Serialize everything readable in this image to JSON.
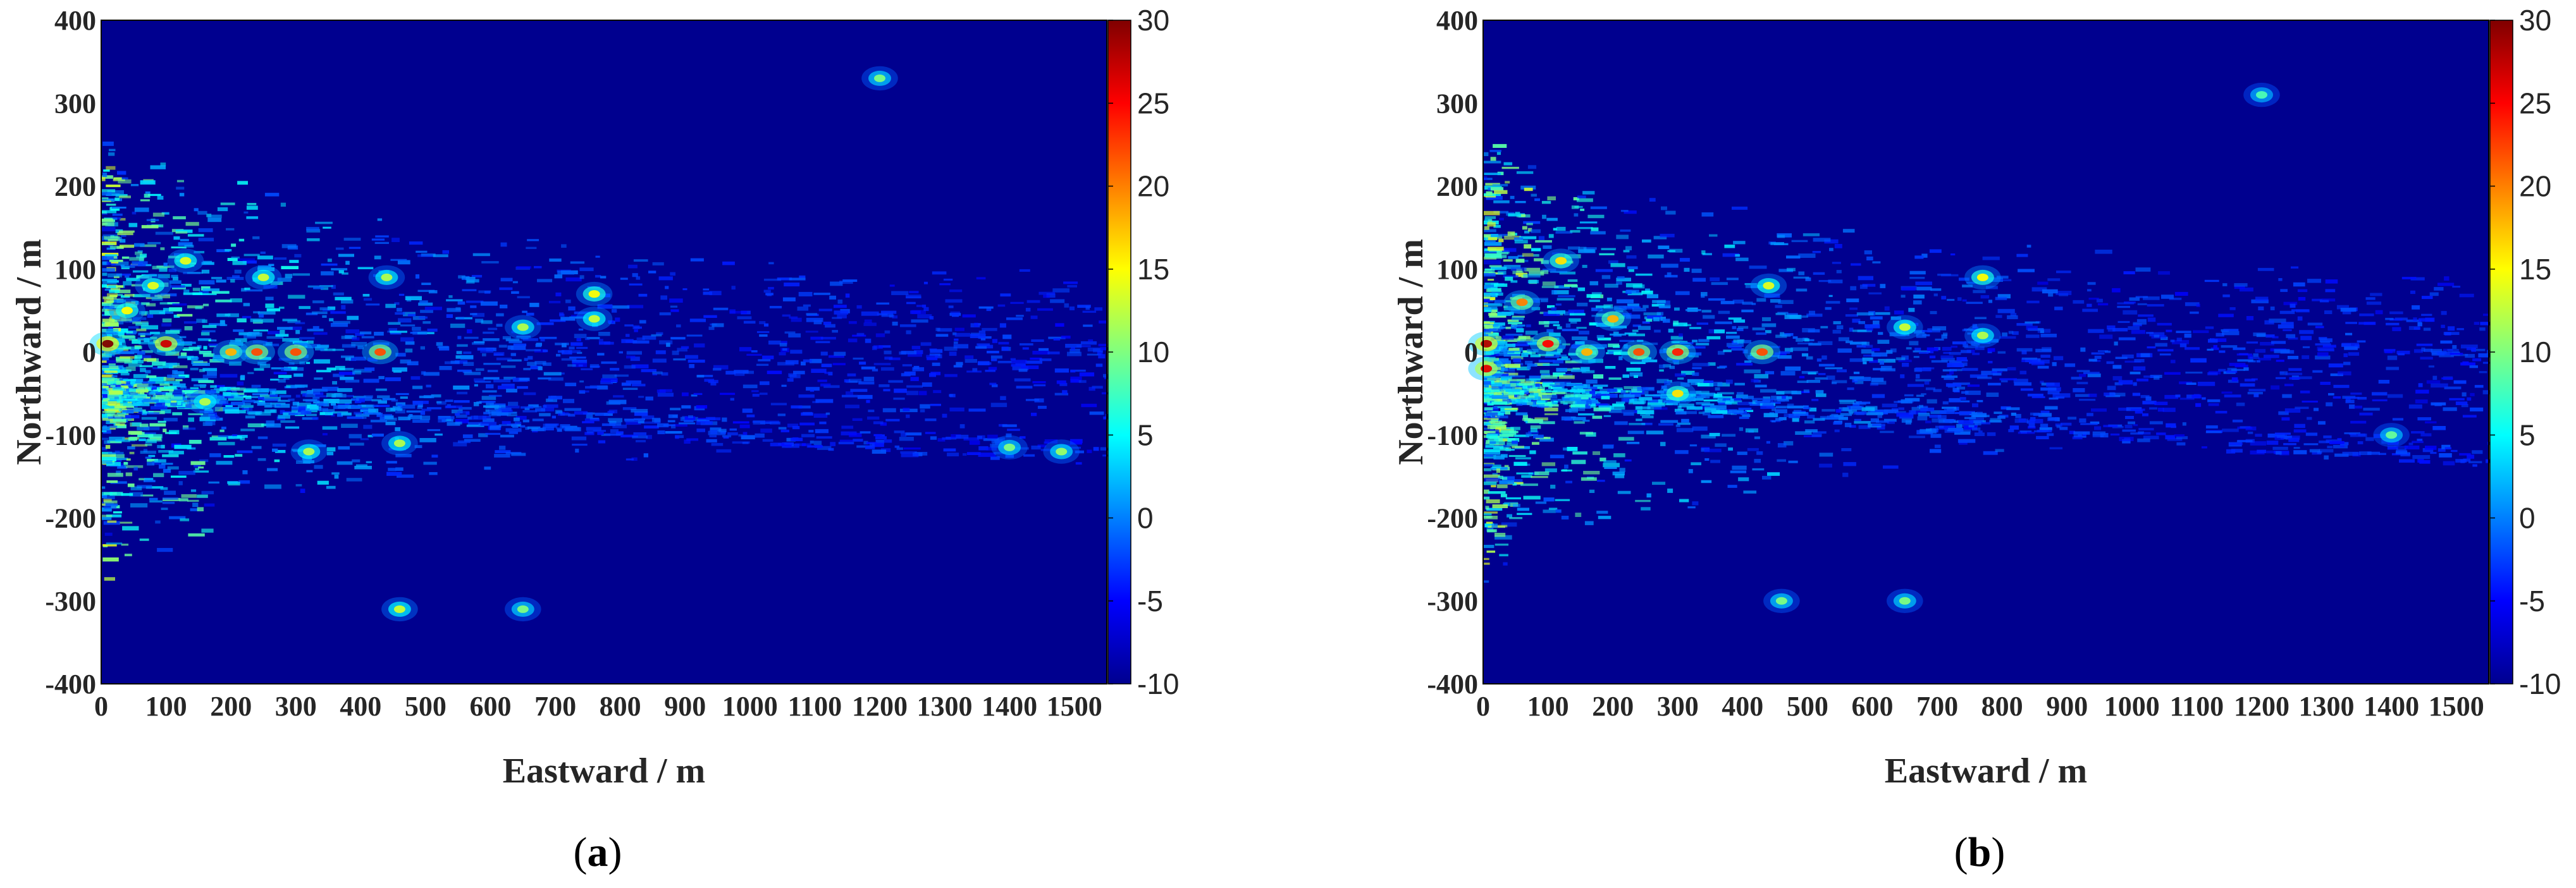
{
  "chart_data": [
    {
      "type": "heatmap",
      "caption_letter": "a",
      "xlabel": "Eastward / m",
      "ylabel": "Northward / m",
      "xlim": [
        0,
        1550
      ],
      "ylim": [
        -400,
        400
      ],
      "xticks": [
        "0",
        "100",
        "200",
        "300",
        "400",
        "500",
        "600",
        "700",
        "800",
        "900",
        "1000",
        "1100",
        "1200",
        "1300",
        "1400",
        "1500"
      ],
      "yticks": [
        "400",
        "300",
        "200",
        "100",
        "0",
        "-100",
        "-200",
        "-300",
        "-400"
      ],
      "colorbar": {
        "range": [
          -10,
          30
        ],
        "ticks": [
          "30",
          "25",
          "20",
          "15",
          "10",
          "5",
          "0",
          "-5",
          "-10"
        ],
        "colormap": "jet"
      },
      "background_value": -10,
      "hot_spots": [
        {
          "x": 10,
          "y": 10,
          "value": 30
        },
        {
          "x": 40,
          "y": 50,
          "value": 15
        },
        {
          "x": 80,
          "y": 80,
          "value": 14
        },
        {
          "x": 100,
          "y": 10,
          "value": 27
        },
        {
          "x": 130,
          "y": 110,
          "value": 14
        },
        {
          "x": 160,
          "y": -60,
          "value": 12
        },
        {
          "x": 200,
          "y": 0,
          "value": 18
        },
        {
          "x": 240,
          "y": 0,
          "value": 22
        },
        {
          "x": 250,
          "y": 90,
          "value": 13
        },
        {
          "x": 300,
          "y": 0,
          "value": 22
        },
        {
          "x": 320,
          "y": -120,
          "value": 12
        },
        {
          "x": 430,
          "y": 0,
          "value": 22
        },
        {
          "x": 440,
          "y": 90,
          "value": 12
        },
        {
          "x": 460,
          "y": -110,
          "value": 12
        },
        {
          "x": 460,
          "y": -310,
          "value": 13
        },
        {
          "x": 650,
          "y": 30,
          "value": 12
        },
        {
          "x": 650,
          "y": -310,
          "value": 10
        },
        {
          "x": 760,
          "y": 70,
          "value": 15
        },
        {
          "x": 760,
          "y": 40,
          "value": 13
        },
        {
          "x": 1200,
          "y": 330,
          "value": 10
        },
        {
          "x": 1400,
          "y": -115,
          "value": 10
        },
        {
          "x": 1480,
          "y": -120,
          "value": 11
        }
      ]
    },
    {
      "type": "heatmap",
      "caption_letter": "b",
      "xlabel": "Eastward / m",
      "ylabel": "Northward / m",
      "xlim": [
        0,
        1550
      ],
      "ylim": [
        -400,
        400
      ],
      "xticks": [
        "0",
        "100",
        "200",
        "300",
        "400",
        "500",
        "600",
        "700",
        "800",
        "900",
        "1000",
        "1100",
        "1200",
        "1300",
        "1400",
        "1500"
      ],
      "yticks": [
        "400",
        "300",
        "200",
        "100",
        "0",
        "-100",
        "-200",
        "-300",
        "-400"
      ],
      "colorbar": {
        "range": [
          -10,
          30
        ],
        "ticks": [
          "30",
          "25",
          "20",
          "15",
          "10",
          "5",
          "0",
          "-5",
          "-10"
        ],
        "colormap": "jet"
      },
      "background_value": -10,
      "hot_spots": [
        {
          "x": 5,
          "y": 10,
          "value": 28
        },
        {
          "x": 5,
          "y": -20,
          "value": 26
        },
        {
          "x": 60,
          "y": 60,
          "value": 20
        },
        {
          "x": 100,
          "y": 10,
          "value": 25
        },
        {
          "x": 120,
          "y": 110,
          "value": 16
        },
        {
          "x": 160,
          "y": 0,
          "value": 18
        },
        {
          "x": 200,
          "y": 40,
          "value": 18
        },
        {
          "x": 240,
          "y": 0,
          "value": 22
        },
        {
          "x": 300,
          "y": 0,
          "value": 24
        },
        {
          "x": 300,
          "y": -50,
          "value": 16
        },
        {
          "x": 430,
          "y": 0,
          "value": 22
        },
        {
          "x": 440,
          "y": 80,
          "value": 14
        },
        {
          "x": 460,
          "y": -300,
          "value": 10
        },
        {
          "x": 650,
          "y": 30,
          "value": 13
        },
        {
          "x": 650,
          "y": -300,
          "value": 10
        },
        {
          "x": 770,
          "y": 90,
          "value": 15
        },
        {
          "x": 770,
          "y": 20,
          "value": 12
        },
        {
          "x": 1200,
          "y": 310,
          "value": 8
        },
        {
          "x": 1400,
          "y": -100,
          "value": 9
        }
      ]
    }
  ]
}
